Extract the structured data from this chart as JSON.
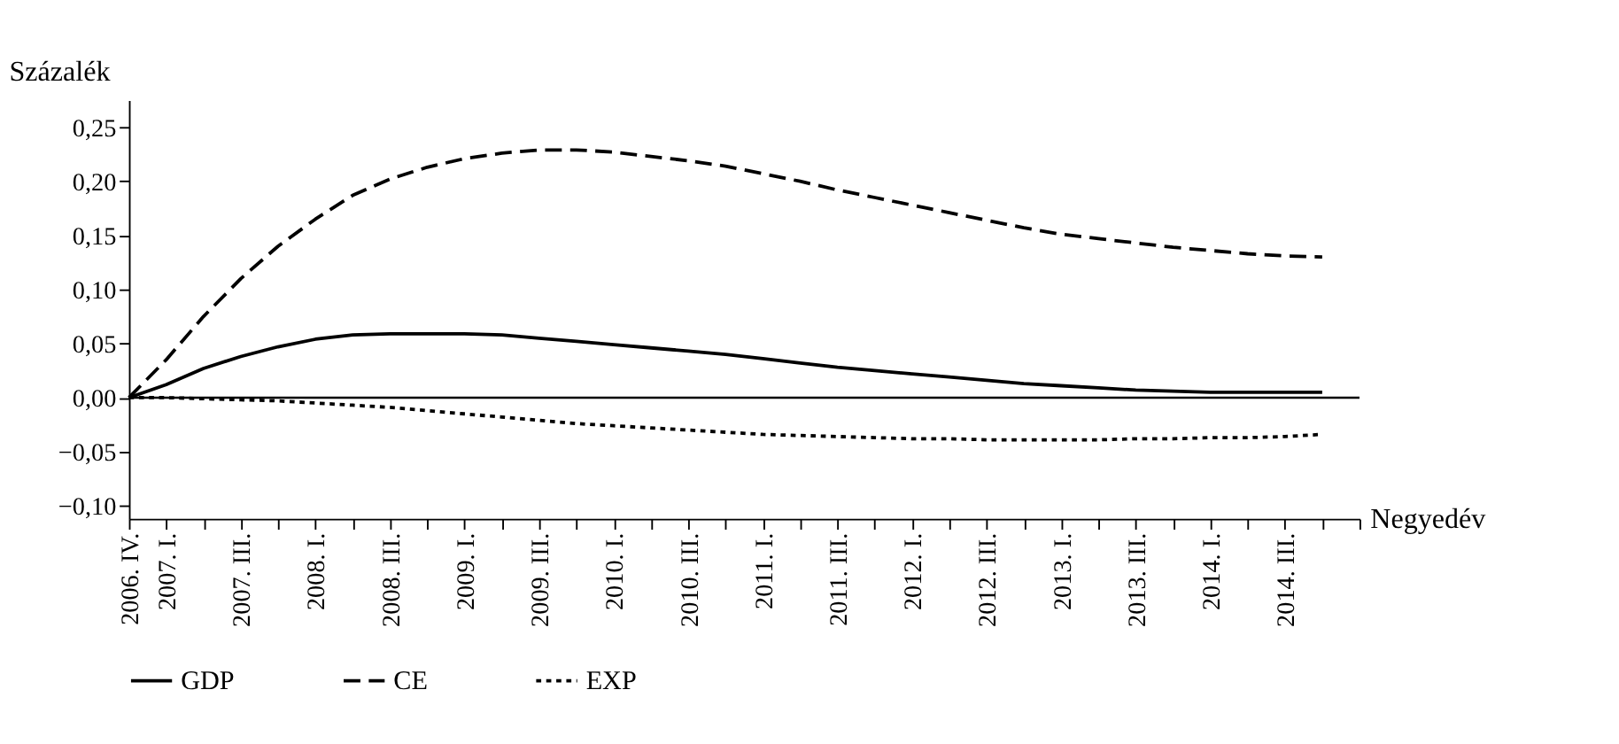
{
  "chart_data": {
    "type": "line",
    "ylabel": "Százalék",
    "xlabel": "Negyedév",
    "categories": [
      "2006. IV.",
      "2007. I.",
      null,
      "2007. III.",
      null,
      "2008. I.",
      null,
      "2008. III.",
      null,
      "2009. I.",
      null,
      "2009. III.",
      null,
      "2010. I.",
      null,
      "2010. III.",
      null,
      "2011. I.",
      null,
      "2011. III.",
      null,
      "2012. I.",
      null,
      "2012. III.",
      null,
      "2013. I.",
      null,
      "2013. III.",
      null,
      "2014. I.",
      null,
      "2014. III.",
      null
    ],
    "series": [
      {
        "name": "GDP",
        "color": "#000000",
        "line_style": "solid",
        "values": [
          0,
          0.012,
          0.027,
          0.038,
          0.047,
          0.054,
          0.058,
          0.059,
          0.059,
          0.059,
          0.058,
          0.055,
          0.052,
          0.049,
          0.046,
          0.043,
          0.04,
          0.036,
          0.032,
          0.028,
          0.025,
          0.022,
          0.019,
          0.016,
          0.013,
          0.011,
          0.009,
          0.007,
          0.006,
          0.005,
          0.005,
          0.005,
          0.005
        ]
      },
      {
        "name": "CE",
        "color": "#000000",
        "line_style": "dashed",
        "values": [
          0,
          0.035,
          0.075,
          0.11,
          0.14,
          0.165,
          0.187,
          0.202,
          0.213,
          0.221,
          0.226,
          0.229,
          0.229,
          0.227,
          0.223,
          0.219,
          0.214,
          0.207,
          0.2,
          0.192,
          0.185,
          0.178,
          0.171,
          0.164,
          0.157,
          0.151,
          0.147,
          0.143,
          0.139,
          0.136,
          0.133,
          0.131,
          0.13
        ]
      },
      {
        "name": "EXP",
        "color": "#000000",
        "line_style": "dotted",
        "values": [
          0,
          0,
          -0.001,
          -0.002,
          -0.003,
          -0.005,
          -0.007,
          -0.009,
          -0.012,
          -0.015,
          -0.018,
          -0.021,
          -0.024,
          -0.026,
          -0.028,
          -0.03,
          -0.032,
          -0.034,
          -0.035,
          -0.036,
          -0.037,
          -0.038,
          -0.038,
          -0.039,
          -0.039,
          -0.039,
          -0.039,
          -0.038,
          -0.038,
          -0.037,
          -0.037,
          -0.036,
          -0.034
        ]
      }
    ],
    "ylim": [
      -0.112,
      0.275
    ],
    "yticks": [
      {
        "value": -0.1,
        "label": "−0,10"
      },
      {
        "value": -0.05,
        "label": "−0,05"
      },
      {
        "value": 0,
        "label": "0,00"
      },
      {
        "value": 0.05,
        "label": "0,05"
      },
      {
        "value": 0.1,
        "label": "0,10"
      },
      {
        "value": 0.15,
        "label": "0,15"
      },
      {
        "value": 0.2,
        "label": "0,20"
      },
      {
        "value": 0.25,
        "label": "0,25"
      }
    ],
    "ref_lines": [
      {
        "axis": "y",
        "value": 0,
        "color": "#000000"
      }
    ],
    "grid": false,
    "legend": "bottom"
  }
}
